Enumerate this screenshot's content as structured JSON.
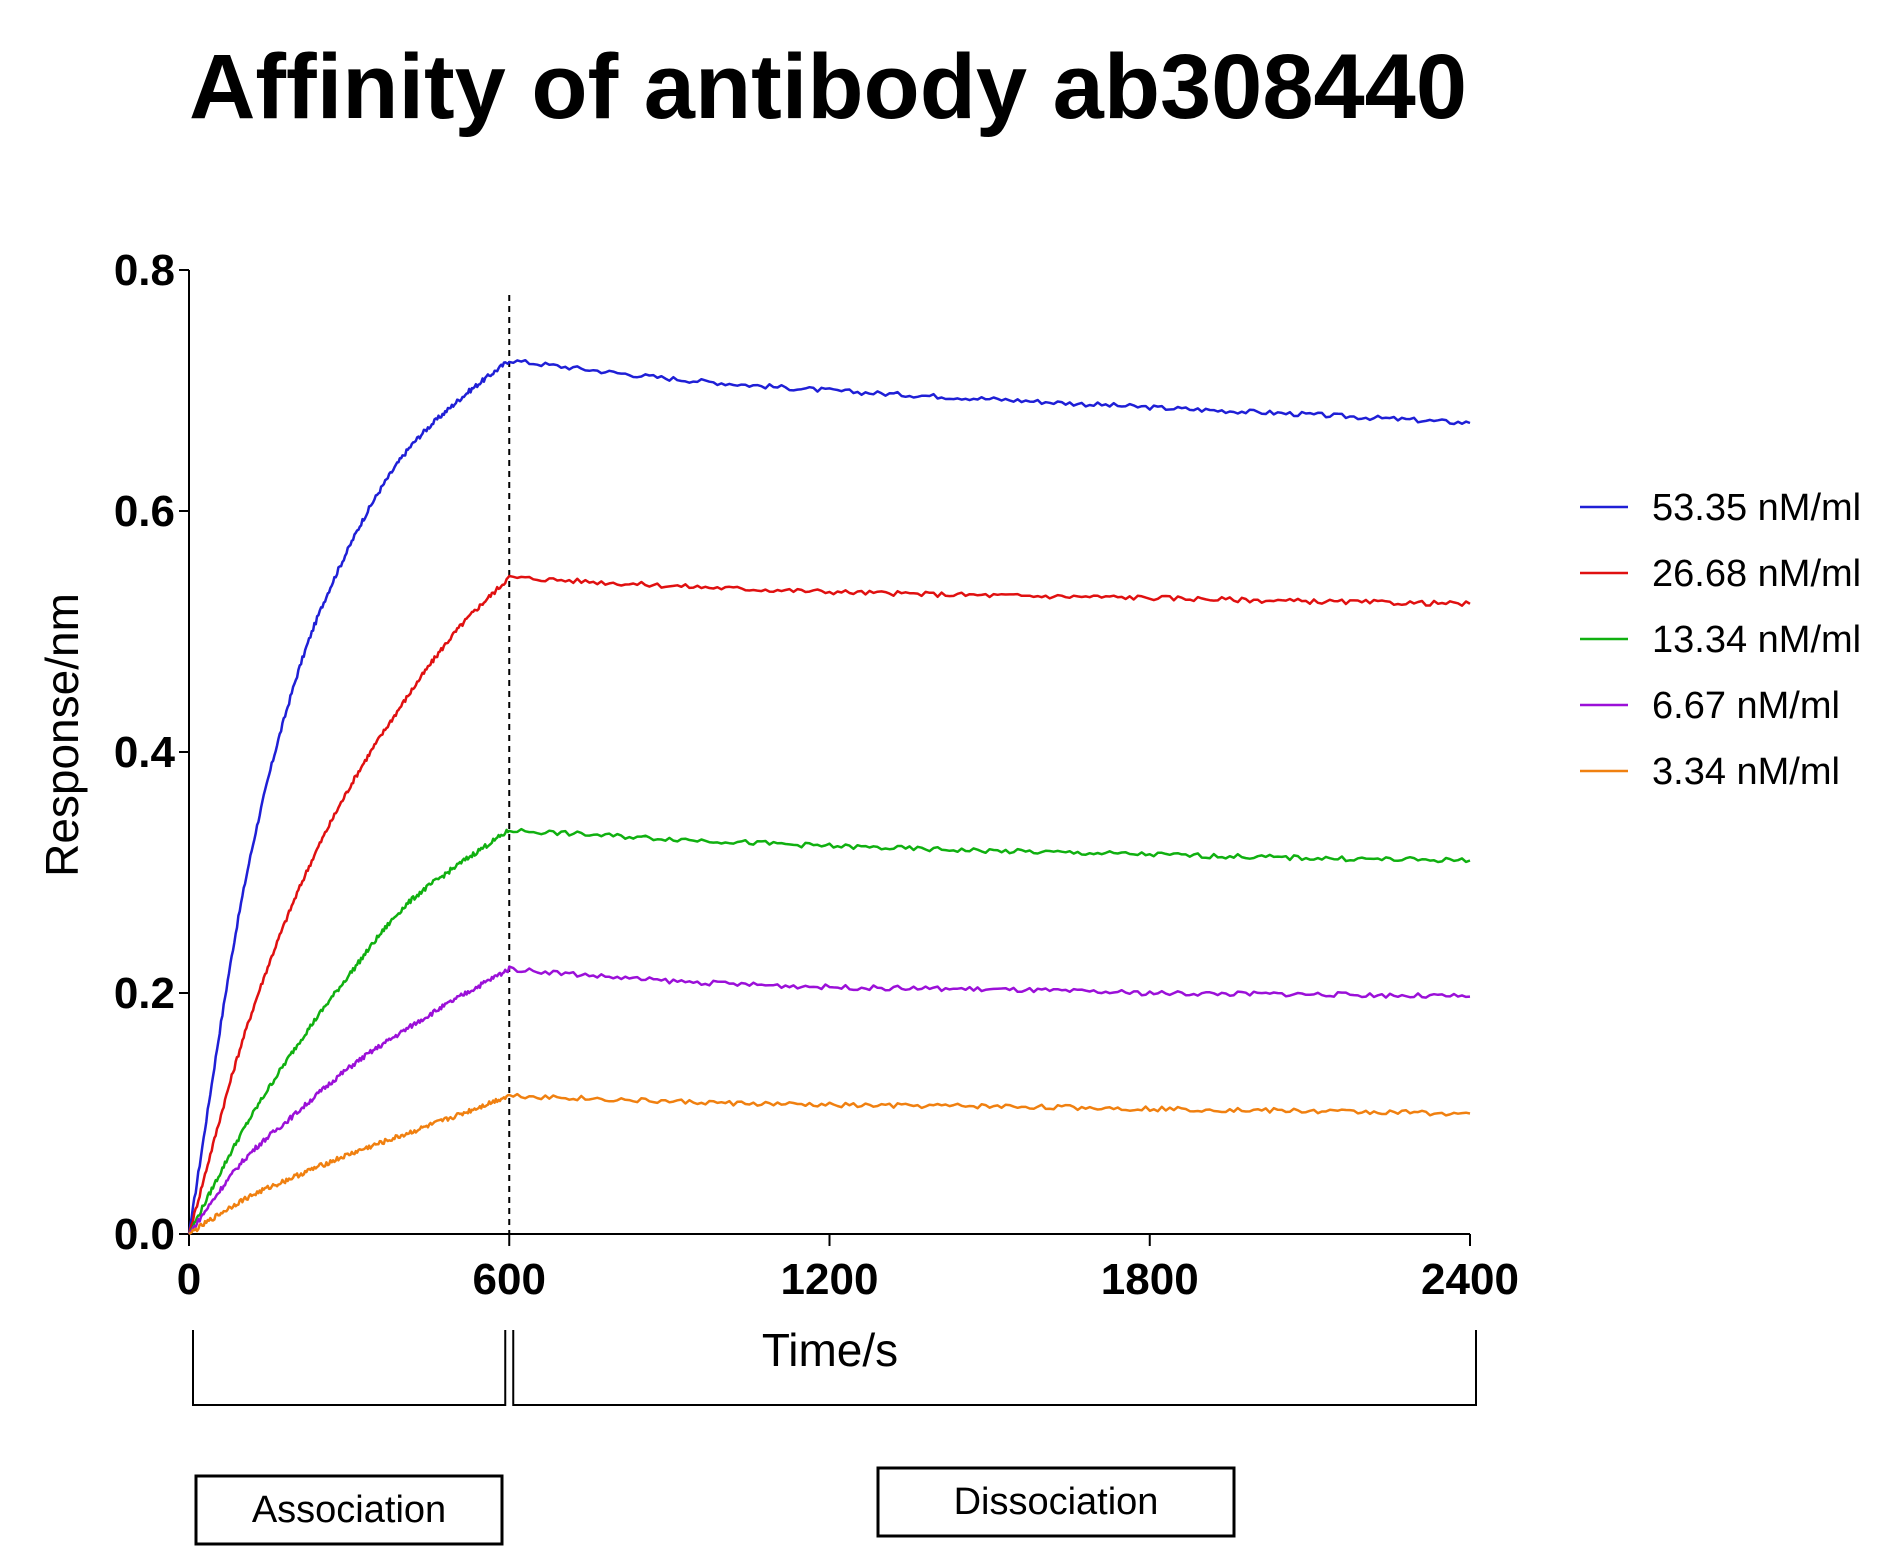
{
  "chart_data": {
    "type": "line",
    "title": "Affinity of antibody ab308440",
    "xlabel": "Time/s",
    "ylabel": "Response/nm",
    "xlim": [
      0,
      2400
    ],
    "ylim": [
      0,
      0.8
    ],
    "xticks": [
      0,
      600,
      1200,
      1800,
      2400
    ],
    "xtick_labels": [
      "0",
      "600",
      "1200",
      "1800",
      "2400"
    ],
    "yticks": [
      0,
      0.2,
      0.4,
      0.6,
      0.8
    ],
    "ytick_labels": [
      "0.0",
      "0.2",
      "0.4",
      "0.6",
      "0.8"
    ],
    "grid": false,
    "legend_position": "right",
    "boundary_x": 600,
    "phases": [
      {
        "label": "Association",
        "start": 0,
        "end": 600
      },
      {
        "label": "Dissociation",
        "start": 600,
        "end": 2400
      }
    ],
    "series": [
      {
        "name": "53.35 nM/ml",
        "color": "#1f1fd6",
        "x": [
          0,
          100,
          200,
          300,
          400,
          500,
          600,
          900,
          1200,
          1500,
          1800,
          2100,
          2400
        ],
        "y": [
          0.0,
          0.28,
          0.46,
          0.57,
          0.645,
          0.69,
          0.725,
          0.71,
          0.7,
          0.693,
          0.686,
          0.68,
          0.673
        ]
      },
      {
        "name": "26.68 nM/ml",
        "color": "#e01010",
        "x": [
          0,
          100,
          200,
          300,
          400,
          500,
          600,
          900,
          1200,
          1500,
          1800,
          2100,
          2400
        ],
        "y": [
          0.0,
          0.16,
          0.28,
          0.37,
          0.44,
          0.5,
          0.545,
          0.538,
          0.533,
          0.53,
          0.528,
          0.525,
          0.523
        ]
      },
      {
        "name": "13.34 nM/ml",
        "color": "#10b010",
        "x": [
          0,
          100,
          200,
          300,
          400,
          500,
          600,
          900,
          1200,
          1500,
          1800,
          2100,
          2400
        ],
        "y": [
          0.0,
          0.085,
          0.155,
          0.215,
          0.27,
          0.305,
          0.335,
          0.328,
          0.322,
          0.318,
          0.315,
          0.312,
          0.31
        ]
      },
      {
        "name": "6.67 nM/ml",
        "color": "#9b10d8",
        "x": [
          0,
          100,
          200,
          300,
          400,
          500,
          600,
          900,
          1200,
          1500,
          1800,
          2100,
          2400
        ],
        "y": [
          0.0,
          0.06,
          0.1,
          0.138,
          0.168,
          0.195,
          0.22,
          0.21,
          0.205,
          0.203,
          0.2,
          0.199,
          0.197
        ]
      },
      {
        "name": "3.34 nM/ml",
        "color": "#f08010",
        "x": [
          0,
          100,
          200,
          300,
          400,
          500,
          600,
          900,
          1200,
          1500,
          1800,
          2100,
          2400
        ],
        "y": [
          0.0,
          0.028,
          0.048,
          0.066,
          0.082,
          0.098,
          0.115,
          0.11,
          0.107,
          0.106,
          0.104,
          0.102,
          0.1
        ]
      }
    ]
  }
}
